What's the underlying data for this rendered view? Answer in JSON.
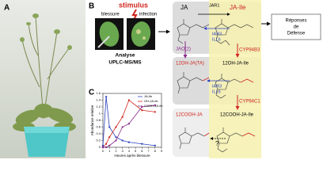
{
  "panels": {
    "a": "A",
    "b": "B",
    "c": "C"
  },
  "panel_b": {
    "stimulus": "stimulus",
    "wound": "blessure",
    "infection": "infection",
    "analysis": [
      "Analyse",
      "UPLC-MS/MS"
    ]
  },
  "diagram": {
    "nodes": [
      "JA",
      "JA-Ile",
      "12OH-JA(TA)",
      "12OH-JA-Ile",
      "12COOH-JA",
      "12COOH-JA-Ile"
    ],
    "enzymes": {
      "jar1": "JAR1",
      "cyp94b3": "CYP94B3",
      "cyp94c1": "CYP94C1",
      "jao": "JAO(2)",
      "iar3_1": [
        "IAR3",
        "ILL6"
      ],
      "iar3_2": [
        "IAR3",
        "ILL6"
      ],
      "unknown": "?"
    },
    "response": [
      "Réponses",
      "de",
      "Défense"
    ]
  },
  "chart_data": {
    "type": "line",
    "x": [
      0,
      0.5,
      1,
      2,
      3,
      4,
      6,
      8
    ],
    "series": [
      {
        "name": "JA-Ile",
        "color": "#2b3fbf",
        "values": [
          0.05,
          1.5,
          0.6,
          0.3,
          0.2,
          0.15,
          0.1,
          0.05
        ]
      },
      {
        "name": "OH-JA-Ile",
        "color": "#d0261e",
        "values": [
          0,
          0.1,
          0.3,
          0.6,
          0.9,
          1.4,
          1.1,
          1.05
        ]
      },
      {
        "name": "COOH-JA-Ile",
        "color": "#8a2b8a",
        "values": [
          0,
          0,
          0.05,
          0.2,
          0.6,
          0.7,
          1.2,
          1.25
        ]
      }
    ],
    "xlim": [
      0,
      9
    ],
    "xticks": [
      0,
      1,
      2,
      3,
      4,
      5,
      6,
      7,
      8,
      9
    ],
    "ylim": [
      0,
      1.6
    ],
    "yticks": [
      0,
      0.2,
      0.4,
      0.6,
      0.8,
      1,
      1.2,
      1.4,
      1.6
    ],
    "xlabel": "Heures après blessure",
    "ylabel": "Abondance relative"
  }
}
